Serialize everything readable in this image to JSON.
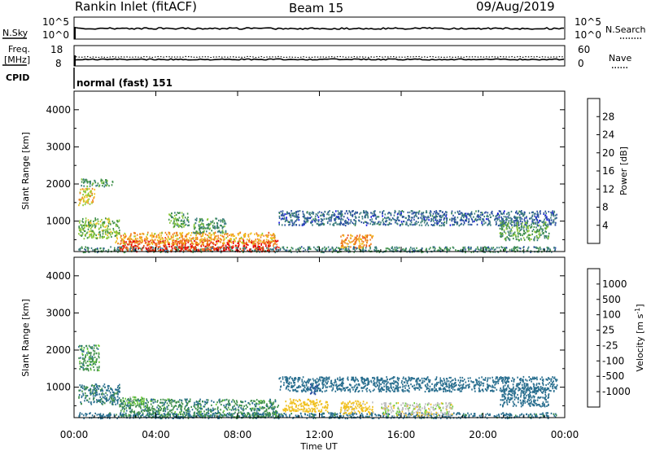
{
  "header": {
    "station": "Rankin Inlet (fitACF)",
    "beam": "Beam 15",
    "date": "09/Aug/2019"
  },
  "status_panels": {
    "nsky": {
      "label": "N.Sky",
      "ticks": [
        "10^5",
        "10^0"
      ]
    },
    "nsearch": {
      "label": "N.Search",
      "ticks": [
        "10^5",
        "10^0"
      ]
    },
    "freq": {
      "label_line1": "Freq.",
      "label_line2": "[MHz]",
      "ticks": [
        "18",
        "8"
      ]
    },
    "nave": {
      "label": "Nave",
      "ticks": [
        "60",
        "0"
      ]
    },
    "cpid": {
      "label": "CPID",
      "value": "normal (fast) 151"
    }
  },
  "colors": {
    "power_scale": [
      "#1010e0",
      "#2a4fa0",
      "#3e7f7f",
      "#3f8f4a",
      "#8ac83a",
      "#f0c020",
      "#f08020",
      "#e84818",
      "#e80000"
    ],
    "velocity_scale": [
      "#e80000",
      "#f04810",
      "#f08020",
      "#f0c020",
      "#bebebe",
      "#6fcf3a",
      "#3f8f4a",
      "#2a6f8f",
      "#2a4fa0",
      "#1010c0"
    ]
  },
  "chart_data": [
    {
      "type": "heatmap",
      "panel": "power",
      "ylabel": "Slant Range [km]",
      "ylim": [
        180,
        4500
      ],
      "yticks": [
        "1000",
        "2000",
        "3000",
        "4000"
      ],
      "colorbar_label": "Power [dB]",
      "colorbar_ticks": [
        "4",
        "8",
        "12",
        "16",
        "20",
        "24",
        "28"
      ],
      "colorbar_range": [
        0,
        32
      ],
      "echo_regions": [
        {
          "t0": 0.2,
          "t1": 23.6,
          "r0": 180,
          "r1": 330,
          "value": 10
        },
        {
          "t0": 2.2,
          "t1": 10.0,
          "r0": 200,
          "r1": 500,
          "value": 28
        },
        {
          "t0": 2.0,
          "t1": 9.8,
          "r0": 400,
          "r1": 720,
          "value": 21
        },
        {
          "t0": 0.2,
          "t1": 2.2,
          "r0": 550,
          "r1": 1100,
          "value": 15
        },
        {
          "t0": 0.2,
          "t1": 1.0,
          "r0": 1450,
          "r1": 1900,
          "value": 19
        },
        {
          "t0": 0.3,
          "t1": 1.9,
          "r0": 1950,
          "r1": 2150,
          "value": 12
        },
        {
          "t0": 4.6,
          "t1": 5.6,
          "r0": 850,
          "r1": 1250,
          "value": 13
        },
        {
          "t0": 5.8,
          "t1": 7.4,
          "r0": 700,
          "r1": 1100,
          "value": 12
        },
        {
          "t0": 13.0,
          "t1": 14.6,
          "r0": 300,
          "r1": 650,
          "value": 22
        },
        {
          "t0": 10.0,
          "t1": 23.6,
          "r0": 900,
          "r1": 1300,
          "value": 7
        },
        {
          "t0": 20.8,
          "t1": 23.2,
          "r0": 500,
          "r1": 1000,
          "value": 13
        }
      ]
    },
    {
      "type": "heatmap",
      "panel": "velocity",
      "ylabel": "Slant Range [km]",
      "ylim": [
        180,
        4500
      ],
      "yticks": [
        "1000",
        "2000",
        "3000",
        "4000"
      ],
      "colorbar_label": "Velocity [m s^-1]",
      "colorbar_ticks": [
        "-1000",
        "-500",
        "-100",
        "-25",
        "25",
        "100",
        "500",
        "1000"
      ],
      "echo_regions": [
        {
          "t0": 0.2,
          "t1": 23.6,
          "r0": 180,
          "r1": 330,
          "value": 150
        },
        {
          "t0": 2.2,
          "t1": 10.0,
          "r0": 200,
          "r1": 700,
          "value": 80
        },
        {
          "t0": 2.3,
          "t1": 3.4,
          "r0": 550,
          "r1": 760,
          "value": 0
        },
        {
          "t0": 0.2,
          "t1": 2.2,
          "r0": 550,
          "r1": 1100,
          "value": 120
        },
        {
          "t0": 0.2,
          "t1": 1.2,
          "r0": 1450,
          "r1": 2150,
          "value": 60
        },
        {
          "t0": 11.5,
          "t1": 11.9,
          "r0": 800,
          "r1": 1100,
          "value": 800
        },
        {
          "t0": 13.0,
          "t1": 14.6,
          "r0": 300,
          "r1": 650,
          "value": -150
        },
        {
          "t0": 10.2,
          "t1": 12.4,
          "r0": 350,
          "r1": 700,
          "value": -200
        },
        {
          "t0": 15.0,
          "t1": 18.5,
          "r0": 250,
          "r1": 600,
          "value": -60
        },
        {
          "t0": 10.0,
          "t1": 23.6,
          "r0": 900,
          "r1": 1300,
          "value": 300
        },
        {
          "t0": 20.8,
          "t1": 23.2,
          "r0": 500,
          "r1": 1000,
          "value": 200
        }
      ]
    }
  ],
  "xaxis": {
    "label": "Time UT",
    "ticks": [
      "00:00",
      "04:00",
      "08:00",
      "12:00",
      "16:00",
      "20:00",
      "00:00"
    ],
    "xlim_hours": [
      0,
      24
    ]
  }
}
